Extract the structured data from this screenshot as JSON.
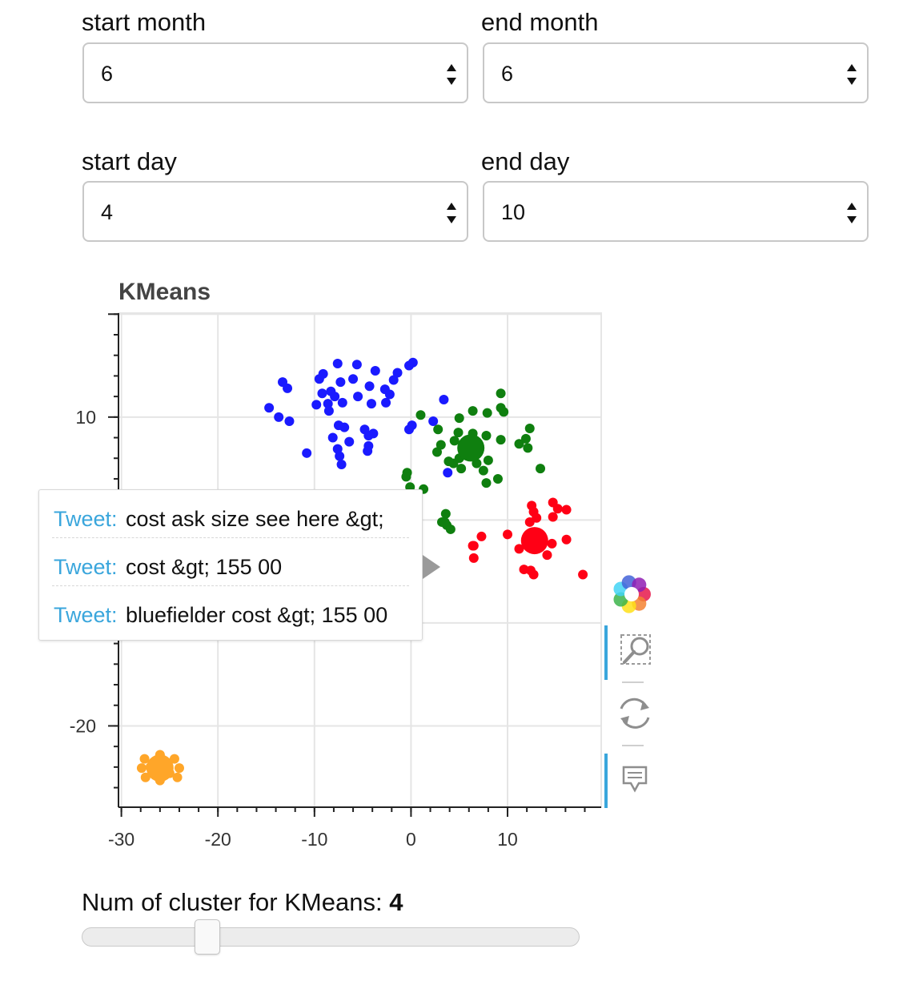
{
  "filters": {
    "start_month": {
      "label": "start month",
      "value": "6"
    },
    "end_month": {
      "label": "end month",
      "value": "6"
    },
    "start_day": {
      "label": "start day",
      "value": "4"
    },
    "end_day": {
      "label": "end day",
      "value": "10"
    }
  },
  "toolbar": {
    "icons": [
      "bokeh-logo-icon",
      "box-zoom-icon",
      "reset-icon",
      "hover-icon"
    ],
    "logo_colors": [
      "#e6194b",
      "#f58231",
      "#ffe119",
      "#3cb44b",
      "#42d4f4",
      "#4363d8",
      "#911eb4"
    ],
    "active_accent": "#3aa6dc"
  },
  "tooltip": {
    "rows": [
      {
        "key": "Tweet:",
        "value": "cost ask size see here &gt;"
      },
      {
        "key": "Tweet:",
        "value": "cost &gt; 155 00"
      },
      {
        "key": "Tweet:",
        "value": "bluefielder cost &gt; 155 00"
      }
    ]
  },
  "slider": {
    "label": "Num of cluster for KMeans:",
    "value": "4",
    "value_fraction": 0.25
  },
  "chart_data": {
    "type": "scatter",
    "title": "KMeans",
    "xlabel": "",
    "ylabel": "",
    "xlim": [
      -30.3,
      19.7
    ],
    "ylim": [
      -27.9,
      20.1
    ],
    "x_ticks": [
      -30,
      -20,
      -10,
      0,
      10
    ],
    "y_ticks": [
      10,
      -20
    ],
    "grid": true,
    "series": [
      {
        "color": "#1a1aff",
        "centroid": null,
        "x": [
          -13.3,
          -12.8,
          -14.7,
          -13.7,
          -12.6,
          -9.5,
          -9.1,
          -7.6,
          -5.6,
          -3.7,
          -1.4,
          -4.3,
          -2.7,
          -0.2,
          0.2,
          -9.8,
          -8.6,
          -9.2,
          -8.3,
          -7.9,
          -7.1,
          -5.5,
          -4.1,
          -2.6,
          -2.2,
          -8.5,
          -7.5,
          -6.9,
          -4.8,
          -3.9,
          -8.1,
          -6.4,
          -4.4,
          -7.6,
          -4.5,
          -7.4,
          -10.8,
          -0.2,
          2.3,
          3.4,
          0.1,
          -1.8,
          -6.0,
          -7.3,
          -4.4,
          3.8,
          -7.2
        ],
        "y": [
          13.4,
          12.8,
          10.9,
          10.0,
          9.6,
          13.7,
          14.2,
          15.2,
          15.1,
          14.5,
          14.3,
          13.0,
          12.7,
          15.0,
          15.3,
          11.2,
          11.3,
          12.3,
          12.5,
          12.0,
          11.4,
          12.0,
          11.3,
          11.4,
          12.2,
          10.6,
          9.2,
          9.0,
          8.8,
          8.4,
          8.0,
          7.6,
          7.2,
          6.9,
          6.7,
          6.2,
          6.5,
          8.8,
          9.6,
          11.7,
          9.2,
          13.6,
          13.7,
          13.4,
          8.2,
          4.6,
          5.4
        ]
      },
      {
        "color": "#0f7f0f",
        "centroid": [
          6.2,
          7.0
        ],
        "x": [
          9.3,
          9.3,
          9.6,
          6.4,
          7.9,
          5.0,
          1.0,
          2.8,
          4.9,
          3.1,
          4.5,
          6.4,
          5.0,
          7.8,
          9.3,
          11.2,
          12.1,
          11.9,
          12.3,
          13.4,
          8.0,
          6.8,
          4.4,
          5.2,
          5.6,
          7.5,
          7.8,
          9.0,
          3.9,
          2.7,
          -0.4,
          -0.5,
          -0.1,
          1.3,
          3.6,
          3.2,
          3.7,
          4.1,
          3.5
        ],
        "y": [
          12.3,
          10.9,
          10.5,
          10.6,
          10.4,
          9.9,
          10.2,
          8.8,
          8.5,
          7.3,
          7.7,
          8.4,
          6.0,
          8.2,
          7.8,
          7.4,
          7.0,
          7.9,
          8.9,
          5.0,
          5.8,
          5.5,
          5.5,
          5.0,
          6.3,
          4.8,
          3.6,
          4.0,
          5.7,
          6.6,
          4.6,
          4.2,
          3.2,
          3.0,
          0.6,
          -0.2,
          -0.5,
          -0.9,
          -0.2
        ]
      },
      {
        "color": "#ff0015",
        "centroid": [
          12.8,
          -2.0
        ],
        "x": [
          12.5,
          14.7,
          15.2,
          16.1,
          12.7,
          13.0,
          14.7,
          10.0,
          7.3,
          6.4,
          6.5,
          11.2,
          14.6,
          14.1,
          11.7,
          12.4,
          12.7,
          17.8,
          16.1,
          6.5,
          12.3
        ],
        "y": [
          1.4,
          1.7,
          1.1,
          1.0,
          0.8,
          0.2,
          0.3,
          -1.4,
          -1.6,
          -2.5,
          -3.7,
          -2.8,
          -2.3,
          -3.4,
          -4.8,
          -4.9,
          -5.3,
          -5.3,
          -1.9,
          -2.5,
          -0.2
        ]
      },
      {
        "color": "#ffa629",
        "centroid": [
          -26.0,
          -24.1
        ],
        "x": [
          -26.0,
          -24.5,
          -24.0,
          -24.2,
          -26.0,
          -27.5,
          -27.9,
          -27.6,
          -25.0,
          -27.0,
          -26.0
        ],
        "y": [
          -22.8,
          -23.2,
          -24.1,
          -25.0,
          -25.3,
          -25.0,
          -24.1,
          -23.2,
          -24.6,
          -24.0,
          -22.9
        ]
      }
    ]
  }
}
